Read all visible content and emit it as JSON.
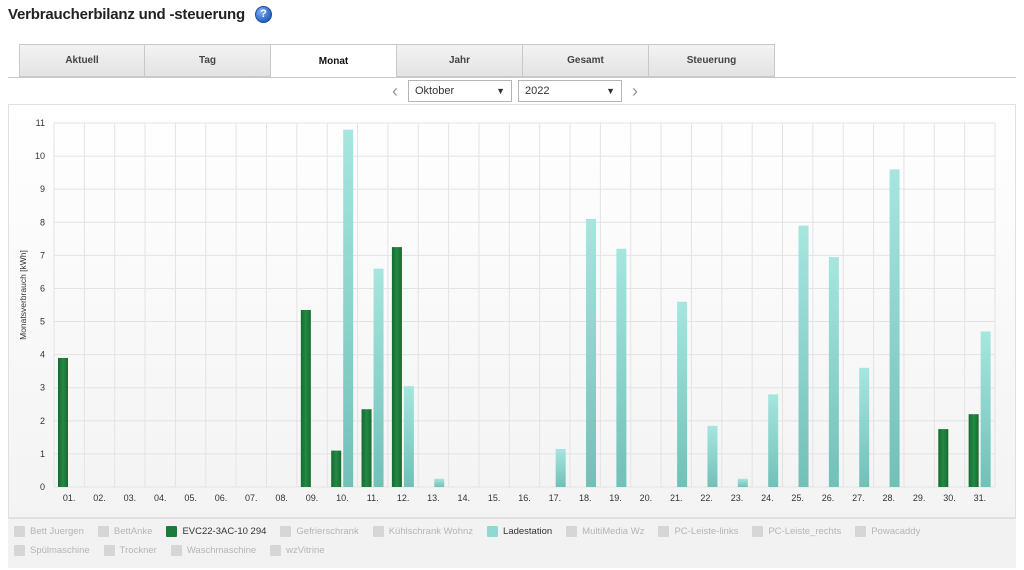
{
  "header": {
    "title": "Verbraucherbilanz und -steuerung",
    "help_icon": "help-icon",
    "help_glyph": "?"
  },
  "tabs": [
    {
      "label": "Aktuell",
      "active": false
    },
    {
      "label": "Tag",
      "active": false
    },
    {
      "label": "Monat",
      "active": true
    },
    {
      "label": "Jahr",
      "active": false
    },
    {
      "label": "Gesamt",
      "active": false
    },
    {
      "label": "Steuerung",
      "active": false
    }
  ],
  "nav": {
    "prev_icon": "chevron-left-icon",
    "next_icon": "chevron-right-icon",
    "month": "Oktober",
    "year": "2022"
  },
  "colors": {
    "evc": "#1e7a3a",
    "ladestation": "#8fd9d2",
    "grid": "#e3e3e3",
    "inactive_swatch": "#d6d6d6"
  },
  "chart_data": {
    "type": "bar",
    "ylabel": "Monatsverbrauch [kWh]",
    "ylim": [
      0,
      11
    ],
    "yticks": [
      0,
      1,
      2,
      3,
      4,
      5,
      6,
      7,
      8,
      9,
      10,
      11
    ],
    "grid": true,
    "legend_position": "bottom",
    "categories": [
      "01.",
      "02.",
      "03.",
      "04.",
      "05.",
      "06.",
      "07.",
      "08.",
      "09.",
      "10.",
      "11.",
      "12.",
      "13.",
      "14.",
      "15.",
      "16.",
      "17.",
      "18.",
      "19.",
      "20.",
      "21.",
      "22.",
      "23.",
      "24.",
      "25.",
      "26.",
      "27.",
      "28.",
      "29.",
      "30.",
      "31."
    ],
    "series": [
      {
        "name": "EVC22-3AC-10 294",
        "color": "#1e7a3a",
        "values": [
          3.9,
          0,
          0,
          0,
          0,
          0,
          0,
          0,
          5.35,
          1.1,
          2.35,
          7.25,
          0,
          0,
          0,
          0,
          0,
          0,
          0,
          0,
          0,
          0,
          0,
          0,
          0,
          0,
          0,
          0,
          0,
          1.75,
          2.2
        ]
      },
      {
        "name": "Ladestation",
        "color": "#8fd9d2",
        "values": [
          0,
          0,
          0,
          0,
          0,
          0,
          0,
          0,
          0,
          10.8,
          6.6,
          3.05,
          0.25,
          0,
          0,
          0,
          1.15,
          8.1,
          7.2,
          0,
          5.6,
          1.85,
          0.25,
          2.8,
          7.9,
          6.95,
          3.6,
          9.6,
          0,
          0,
          4.7
        ]
      }
    ]
  },
  "legend": [
    {
      "label": "Bett Juergen",
      "active": false,
      "color": "#d6d6d6"
    },
    {
      "label": "BettAnke",
      "active": false,
      "color": "#d6d6d6"
    },
    {
      "label": "EVC22-3AC-10 294",
      "active": true,
      "color": "#1e7a3a"
    },
    {
      "label": "Gefrierschrank",
      "active": false,
      "color": "#d6d6d6"
    },
    {
      "label": "Kühlschrank Wohnz",
      "active": false,
      "color": "#d6d6d6"
    },
    {
      "label": "Ladestation",
      "active": true,
      "color": "#8fd9d2"
    },
    {
      "label": "MultiMedia Wz",
      "active": false,
      "color": "#d6d6d6"
    },
    {
      "label": "PC-Leiste-links",
      "active": false,
      "color": "#d6d6d6"
    },
    {
      "label": "PC-Leiste_rechts",
      "active": false,
      "color": "#d6d6d6"
    },
    {
      "label": "Powacaddy",
      "active": false,
      "color": "#d6d6d6"
    },
    {
      "label": "Spülmaschine",
      "active": false,
      "color": "#d6d6d6"
    },
    {
      "label": "Trockner",
      "active": false,
      "color": "#d6d6d6"
    },
    {
      "label": "Waschmaschine",
      "active": false,
      "color": "#d6d6d6"
    },
    {
      "label": "wzVitrine",
      "active": false,
      "color": "#d6d6d6"
    }
  ]
}
